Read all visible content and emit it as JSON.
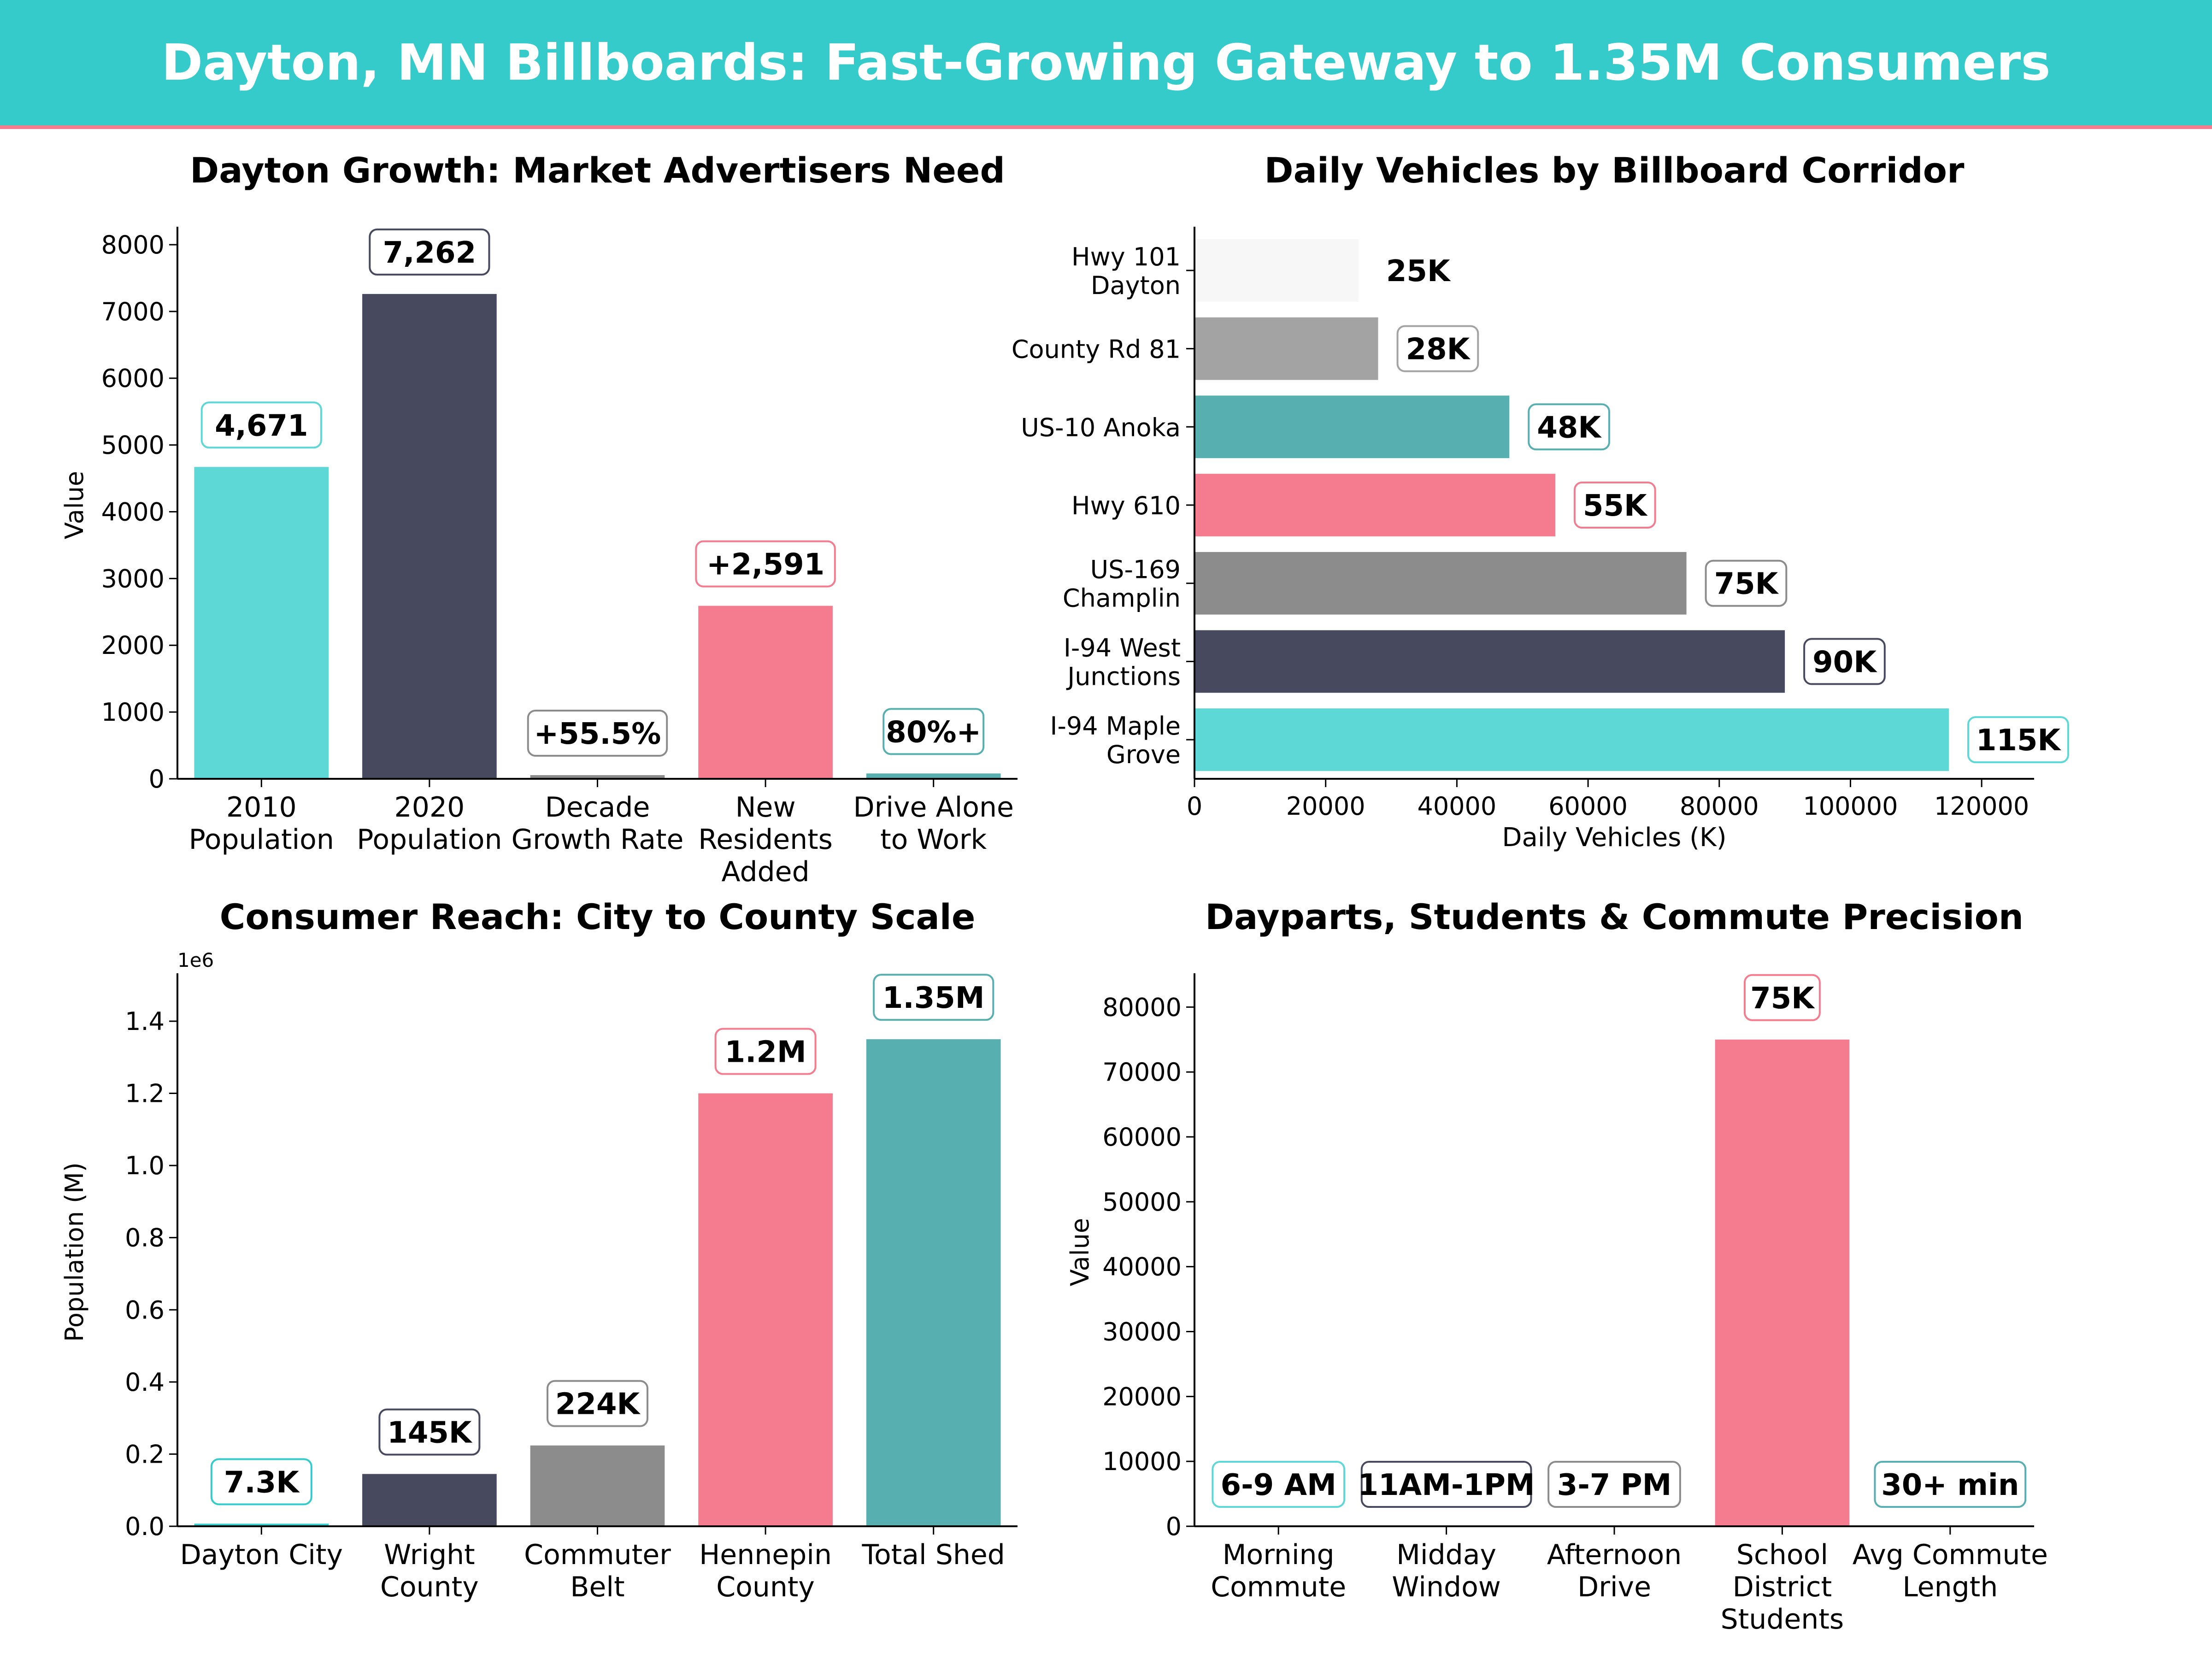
{
  "header": {
    "title": "Dayton, MN Billboards: Fast-Growing Gateway to 1.35M Consumers",
    "background_color": "#36CBCB",
    "accent_color": "#F47C8E"
  },
  "chart_data": [
    {
      "type": "bar",
      "title": "Dayton Growth: Market Advertisers Need",
      "ylabel": "Value",
      "xlabel": "",
      "ylim": [
        0,
        8200
      ],
      "yticks": [
        0,
        1000,
        2000,
        3000,
        4000,
        5000,
        6000,
        7000,
        8000
      ],
      "categories": [
        "2010\nPopulation",
        "2020\nPopulation",
        "Decade\nGrowth Rate",
        "New\nResidents\nAdded",
        "Drive Alone\nto Work"
      ],
      "values": [
        4671,
        7262,
        55.5,
        2591,
        80
      ],
      "data_labels": [
        "4,671",
        "7,262",
        "+55.5%",
        "+2,591",
        "80%+"
      ],
      "colors": [
        "#5DD8D6",
        "#474A5E",
        "#8C8C8C",
        "#F47C8E",
        "#57AFAF"
      ],
      "grid": false
    },
    {
      "type": "barh",
      "title": "Daily Vehicles by Billboard Corridor",
      "xlabel": "Daily Vehicles (K)",
      "ylabel": "",
      "xlim": [
        0,
        128000
      ],
      "xticks": [
        0,
        20000,
        40000,
        60000,
        80000,
        100000,
        120000
      ],
      "categories": [
        "Hwy 101\nDayton",
        "County Rd 81",
        "US-10 Anoka",
        "Hwy 610",
        "US-169\nChamplin",
        "I-94 West\nJunctions",
        "I-94 Maple\nGrove"
      ],
      "values": [
        25000,
        28000,
        48000,
        55000,
        75000,
        90000,
        115000
      ],
      "data_labels": [
        "25K",
        "28K",
        "48K",
        "55K",
        "75K",
        "90K",
        "115K"
      ],
      "colors": [
        "#F7F7F7",
        "#A3A3A3",
        "#57AFAF",
        "#F47C8E",
        "#8C8C8C",
        "#474A5E",
        "#5DD8D6"
      ],
      "grid": false
    },
    {
      "type": "bar",
      "title": "Consumer Reach: City to County Scale",
      "ylabel": "Population (M)",
      "xlabel": "",
      "offset_text": "1e6",
      "ylim": [
        0,
        1520000
      ],
      "yticks": [
        0,
        200000,
        400000,
        600000,
        800000,
        1000000,
        1200000,
        1400000
      ],
      "ytick_labels": [
        "0.0",
        "0.2",
        "0.4",
        "0.6",
        "0.8",
        "1.0",
        "1.2",
        "1.4"
      ],
      "categories": [
        "Dayton City",
        "Wright\nCounty",
        "Commuter\nBelt",
        "Hennepin\nCounty",
        "Total Shed"
      ],
      "values": [
        7262,
        145000,
        224000,
        1200000,
        1350000
      ],
      "data_labels": [
        "7.3K",
        "145K",
        "224K",
        "1.2M",
        "1.35M"
      ],
      "colors": [
        "#36CBCB",
        "#474A5E",
        "#8C8C8C",
        "#F47C8E",
        "#57AFAF"
      ],
      "grid": false
    },
    {
      "type": "bar",
      "title": "Dayparts, Students & Commute Precision",
      "ylabel": "Value",
      "xlabel": "",
      "ylim": [
        0,
        84500
      ],
      "yticks": [
        0,
        10000,
        20000,
        30000,
        40000,
        50000,
        60000,
        70000,
        80000
      ],
      "categories": [
        "Morning\nCommute",
        "Midday\nWindow",
        "Afternoon\nDrive",
        "School\nDistrict\nStudents",
        "Avg Commute\nLength"
      ],
      "values": [
        3,
        2,
        4,
        75000,
        30
      ],
      "data_labels": [
        "6-9 AM",
        "11AM-1PM",
        "3-7 PM",
        "75K",
        "30+ min"
      ],
      "colors": [
        "#5DD8D6",
        "#474A5E",
        "#8C8C8C",
        "#F47C8E",
        "#57AFAF"
      ],
      "grid": false
    }
  ]
}
